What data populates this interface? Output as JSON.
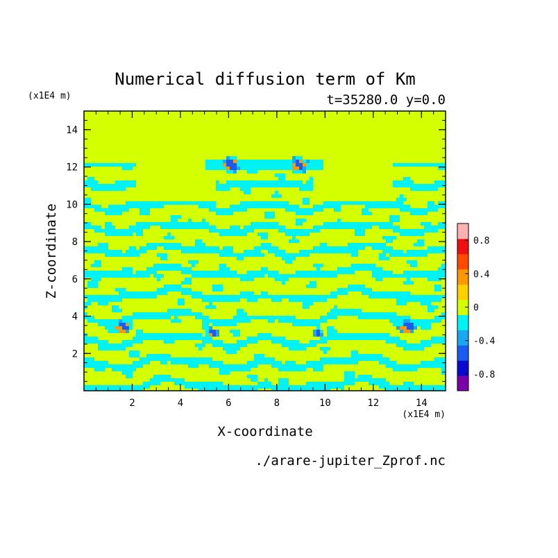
{
  "chart_data": {
    "type": "heatmap",
    "title": "Numerical diffusion term of Km",
    "subtitle": "t=35280.0 y=0.0",
    "xlabel": "X-coordinate",
    "ylabel": "Z-coordinate",
    "x_unit": "(x1E4 m)",
    "y_unit": "(x1E4 m)",
    "xlim": [
      0,
      15
    ],
    "ylim": [
      0,
      15
    ],
    "x_ticks": [
      2,
      4,
      6,
      8,
      10,
      12,
      14
    ],
    "y_ticks": [
      2,
      4,
      6,
      8,
      10,
      12,
      14
    ],
    "source_file": "./arare-jupiter_Zprof.nc",
    "colorbar": {
      "levels": [
        -1.0,
        -0.8,
        -0.6,
        -0.4,
        -0.2,
        0,
        0.2,
        0.4,
        0.6,
        0.8,
        1.0
      ],
      "colors": [
        "#7a00a8",
        "#0a0ad0",
        "#1a5cf0",
        "#18a8f2",
        "#00f2f2",
        "#d4ff00",
        "#ffd000",
        "#ff9800",
        "#ff4a00",
        "#ee1010",
        "#ffb0b0"
      ],
      "tick_labels": [
        "0.8",
        "0.4",
        "0",
        "-0.4",
        "-0.8"
      ],
      "tick_values": [
        0.8,
        0.4,
        0,
        -0.4,
        -0.8
      ]
    },
    "field_description_values": {
      "background_level": 0,
      "dominant_negative_level": -0.2,
      "extremes_min": -0.8,
      "extremes_max": 0.6
    },
    "grid": false
  }
}
